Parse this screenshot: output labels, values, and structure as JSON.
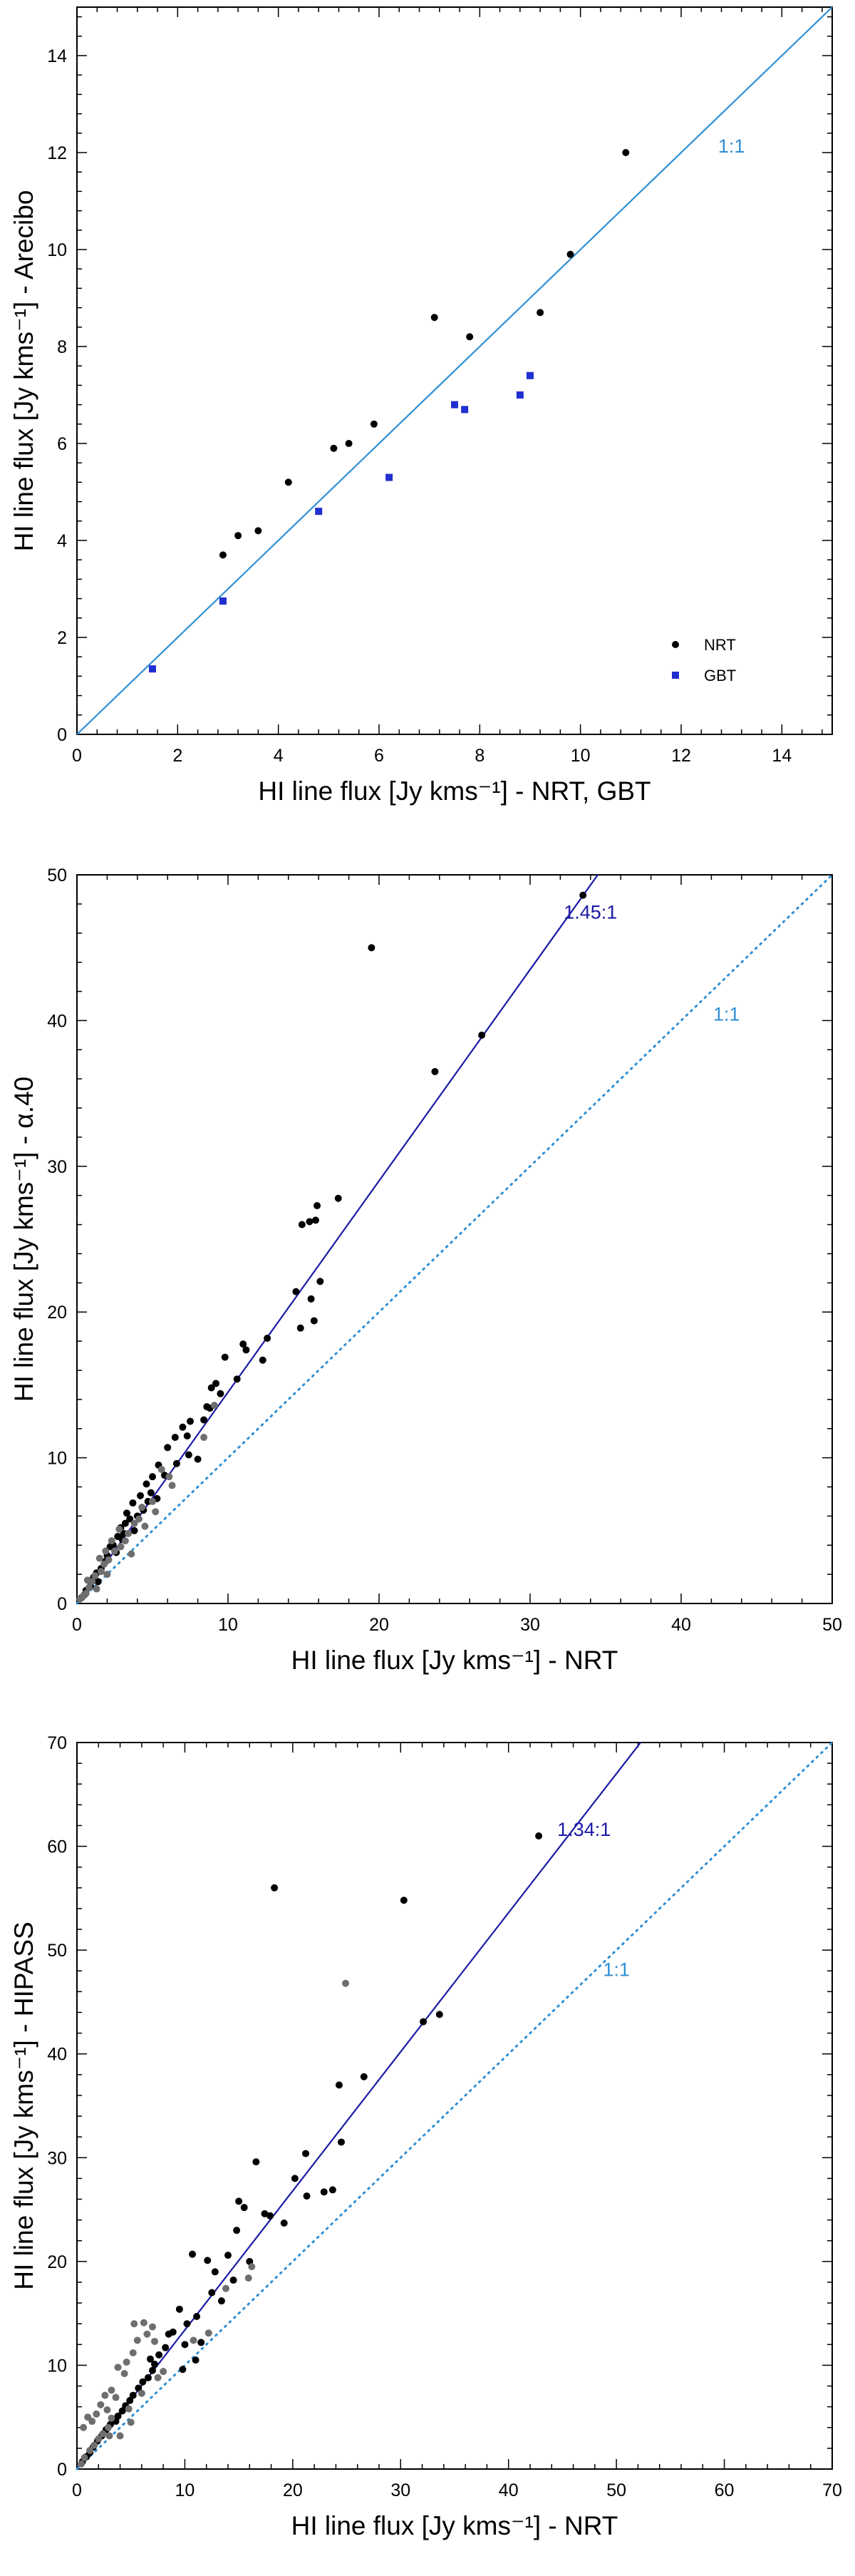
{
  "chart_data": [
    {
      "type": "scatter",
      "title": "",
      "xlabel": "HI line flux [Jy kms⁻¹] - NRT, GBT",
      "ylabel": "HI line flux [Jy kms⁻¹] - Arecibo",
      "xlim": [
        0,
        15
      ],
      "ylim": [
        0,
        15
      ],
      "xticks": [
        0,
        2,
        4,
        6,
        8,
        10,
        12,
        14
      ],
      "yticks": [
        0,
        2,
        4,
        6,
        8,
        10,
        12,
        14
      ],
      "legend_position": "bottom-right",
      "lines": [
        {
          "name": "1:1",
          "slope": 1.0,
          "style": "solid",
          "color": "#2e8fd6",
          "label_x": 13.0,
          "label_y": 12.0
        }
      ],
      "series": [
        {
          "name": "NRT",
          "marker": "circle",
          "color": "#000000",
          "points": [
            [
              2.9,
              3.7
            ],
            [
              3.2,
              4.1
            ],
            [
              3.6,
              4.2
            ],
            [
              4.2,
              5.2
            ],
            [
              5.1,
              5.9
            ],
            [
              5.4,
              6.0
            ],
            [
              5.9,
              6.4
            ],
            [
              7.1,
              8.6
            ],
            [
              7.8,
              8.2
            ],
            [
              9.2,
              8.7
            ],
            [
              9.8,
              9.9
            ],
            [
              10.9,
              12.0
            ]
          ]
        },
        {
          "name": "GBT",
          "marker": "square",
          "color": "#1f2fd0",
          "points": [
            [
              1.5,
              1.35
            ],
            [
              2.9,
              2.75
            ],
            [
              4.8,
              4.6
            ],
            [
              6.2,
              5.3
            ],
            [
              7.5,
              6.8
            ],
            [
              7.7,
              6.7
            ],
            [
              8.8,
              7.0
            ],
            [
              9.0,
              7.4
            ]
          ]
        }
      ]
    },
    {
      "type": "scatter",
      "title": "",
      "xlabel": "HI line flux [Jy kms⁻¹] - NRT",
      "ylabel": "HI line flux [Jy kms⁻¹] - α.40",
      "xlim": [
        0,
        50
      ],
      "ylim": [
        0,
        50
      ],
      "xticks": [
        0,
        10,
        20,
        30,
        40,
        50
      ],
      "yticks": [
        0,
        10,
        20,
        30,
        40,
        50
      ],
      "lines": [
        {
          "name": "1.45:1",
          "slope": 1.45,
          "style": "solid",
          "color": "#1a1aa6",
          "label_x": 34.0,
          "label_y": 47.0
        },
        {
          "name": "1:1",
          "slope": 1.0,
          "style": "dotted",
          "color": "#2e8fd6",
          "label_x": 43.0,
          "label_y": 40.0
        }
      ],
      "series": [
        {
          "name": "black",
          "color": "#000000",
          "points": [
            [
              33.5,
              48.6
            ],
            [
              19.5,
              45.0
            ],
            [
              26.8,
              39.0
            ],
            [
              23.7,
              36.5
            ],
            [
              17.3,
              27.8
            ],
            [
              15.9,
              27.3
            ],
            [
              15.8,
              26.3
            ],
            [
              15.4,
              26.2
            ],
            [
              14.9,
              26.0
            ],
            [
              14.5,
              21.4
            ],
            [
              16.1,
              22.1
            ],
            [
              15.5,
              20.9
            ],
            [
              15.7,
              19.4
            ],
            [
              14.8,
              18.9
            ],
            [
              12.6,
              18.2
            ],
            [
              11.0,
              17.8
            ],
            [
              11.2,
              17.4
            ],
            [
              9.8,
              16.9
            ],
            [
              12.3,
              16.7
            ],
            [
              10.6,
              15.4
            ],
            [
              9.2,
              15.1
            ],
            [
              8.9,
              14.8
            ],
            [
              8.6,
              13.5
            ],
            [
              8.4,
              12.6
            ],
            [
              7.5,
              12.5
            ],
            [
              7.0,
              12.1
            ],
            [
              7.3,
              11.5
            ],
            [
              6.5,
              11.4
            ],
            [
              6.0,
              10.7
            ],
            [
              7.4,
              10.2
            ],
            [
              8.0,
              9.9
            ],
            [
              5.4,
              9.5
            ],
            [
              5.0,
              8.7
            ],
            [
              4.6,
              8.2
            ],
            [
              4.9,
              7.6
            ],
            [
              5.3,
              7.2
            ],
            [
              4.2,
              7.4
            ],
            [
              3.7,
              6.9
            ],
            [
              4.4,
              6.4
            ],
            [
              3.3,
              6.2
            ],
            [
              3.5,
              5.8
            ],
            [
              2.9,
              5.2
            ],
            [
              3.2,
              5.5
            ],
            [
              3.8,
              5.0
            ],
            [
              2.7,
              4.6
            ],
            [
              3.0,
              4.4
            ],
            [
              2.4,
              4.0
            ],
            [
              2.6,
              3.5
            ],
            [
              2.0,
              3.3
            ],
            [
              1.9,
              2.9
            ],
            [
              1.6,
              2.4
            ],
            [
              1.3,
              2.1
            ],
            [
              1.1,
              1.8
            ],
            [
              1.4,
              1.5
            ],
            [
              0.9,
              1.2
            ],
            [
              0.6,
              0.9
            ],
            [
              0.5,
              0.6
            ],
            [
              0.3,
              0.4
            ],
            [
              5.8,
              8.8
            ],
            [
              6.6,
              9.6
            ],
            [
              9.5,
              14.4
            ],
            [
              8.8,
              13.4
            ],
            [
              2.2,
              3.9
            ],
            [
              4.0,
              6.0
            ],
            [
              3.1,
              4.8
            ],
            [
              4.7,
              7.0
            ]
          ]
        },
        {
          "name": "grey",
          "color": "#6e6e6e",
          "points": [
            [
              9.1,
              13.6
            ],
            [
              8.4,
              11.4
            ],
            [
              6.1,
              8.7
            ],
            [
              5.6,
              9.2
            ],
            [
              5.0,
              7.0
            ],
            [
              4.3,
              6.6
            ],
            [
              3.8,
              5.5
            ],
            [
              3.2,
              4.3
            ],
            [
              2.9,
              3.9
            ],
            [
              2.5,
              3.6
            ],
            [
              2.1,
              3.0
            ],
            [
              1.8,
              2.7
            ],
            [
              1.6,
              2.2
            ],
            [
              1.2,
              1.9
            ],
            [
              1.0,
              1.5
            ],
            [
              0.8,
              1.1
            ],
            [
              0.6,
              0.7
            ],
            [
              0.4,
              0.5
            ],
            [
              0.2,
              0.3
            ],
            [
              1.9,
              3.6
            ],
            [
              2.3,
              4.3
            ],
            [
              2.8,
              5.1
            ],
            [
              3.4,
              4.8
            ],
            [
              4.1,
              5.8
            ],
            [
              0.7,
              1.6
            ],
            [
              1.3,
              1.0
            ],
            [
              2.0,
              2.0
            ],
            [
              1.5,
              3.1
            ],
            [
              3.6,
              3.4
            ],
            [
              4.5,
              5.3
            ],
            [
              5.2,
              6.3
            ],
            [
              6.3,
              8.1
            ]
          ]
        }
      ]
    },
    {
      "type": "scatter",
      "title": "",
      "xlabel": "HI line flux [Jy kms⁻¹] - NRT",
      "ylabel": "HI line flux [Jy kms⁻¹] - HIPASS",
      "xlim": [
        0,
        70
      ],
      "ylim": [
        0,
        70
      ],
      "xticks": [
        0,
        10,
        20,
        30,
        40,
        50,
        60,
        70
      ],
      "yticks": [
        0,
        10,
        20,
        30,
        40,
        50,
        60,
        70
      ],
      "lines": [
        {
          "name": "1.34:1",
          "slope": 1.34,
          "style": "solid",
          "color": "#1a1aa6",
          "label_x": 47.0,
          "label_y": 61.0
        },
        {
          "name": "1:1",
          "slope": 1.0,
          "style": "dotted",
          "color": "#2e8fd6",
          "label_x": 50.0,
          "label_y": 47.5
        }
      ],
      "series": [
        {
          "name": "black",
          "color": "#000000",
          "points": [
            [
              42.8,
              61.0
            ],
            [
              18.3,
              56.0
            ],
            [
              30.3,
              54.8
            ],
            [
              33.6,
              43.8
            ],
            [
              32.1,
              43.1
            ],
            [
              26.6,
              37.8
            ],
            [
              24.3,
              37.0
            ],
            [
              24.5,
              31.5
            ],
            [
              21.2,
              30.4
            ],
            [
              22.9,
              26.7
            ],
            [
              23.7,
              26.9
            ],
            [
              21.3,
              26.3
            ],
            [
              16.6,
              29.6
            ],
            [
              15.0,
              25.8
            ],
            [
              15.5,
              25.2
            ],
            [
              17.4,
              24.6
            ],
            [
              17.9,
              24.4
            ],
            [
              19.2,
              23.7
            ],
            [
              20.2,
              28.0
            ],
            [
              14.8,
              23.0
            ],
            [
              14.0,
              20.6
            ],
            [
              12.1,
              20.1
            ],
            [
              10.7,
              20.7
            ],
            [
              12.5,
              17.0
            ],
            [
              13.4,
              16.2
            ],
            [
              14.5,
              18.2
            ],
            [
              11.1,
              14.7
            ],
            [
              10.2,
              14.0
            ],
            [
              9.5,
              15.4
            ],
            [
              8.9,
              13.2
            ],
            [
              8.2,
              11.7
            ],
            [
              7.6,
              11.0
            ],
            [
              7.2,
              10.1
            ],
            [
              7.0,
              9.5
            ],
            [
              6.6,
              8.8
            ],
            [
              6.1,
              8.4
            ],
            [
              5.7,
              7.8
            ],
            [
              5.2,
              7.1
            ],
            [
              4.9,
              6.6
            ],
            [
              4.5,
              6.1
            ],
            [
              4.2,
              5.6
            ],
            [
              3.8,
              5.1
            ],
            [
              3.6,
              4.6
            ],
            [
              3.1,
              4.3
            ],
            [
              2.7,
              3.8
            ],
            [
              2.3,
              3.2
            ],
            [
              1.9,
              2.7
            ],
            [
              1.5,
              2.1
            ],
            [
              1.2,
              1.6
            ],
            [
              0.9,
              1.2
            ],
            [
              0.5,
              0.7
            ],
            [
              10.0,
              12.0
            ],
            [
              11.5,
              12.2
            ],
            [
              12.8,
              19.0
            ],
            [
              16.0,
              20.0
            ],
            [
              8.5,
              13.0
            ],
            [
              6.8,
              10.6
            ],
            [
              9.8,
              9.6
            ],
            [
              11.0,
              10.5
            ]
          ]
        },
        {
          "name": "grey",
          "color": "#6e6e6e",
          "points": [
            [
              24.9,
              46.8
            ],
            [
              16.2,
              19.5
            ],
            [
              13.8,
              17.4
            ],
            [
              15.9,
              18.4
            ],
            [
              12.2,
              13.1
            ],
            [
              10.8,
              12.4
            ],
            [
              5.3,
              14.0
            ],
            [
              6.2,
              14.1
            ],
            [
              7.0,
              13.7
            ],
            [
              6.5,
              13.0
            ],
            [
              5.6,
              12.4
            ],
            [
              7.2,
              12.3
            ],
            [
              4.6,
              10.3
            ],
            [
              5.2,
              11.2
            ],
            [
              3.8,
              9.8
            ],
            [
              4.4,
              9.2
            ],
            [
              3.2,
              7.6
            ],
            [
              2.6,
              7.1
            ],
            [
              2.2,
              6.2
            ],
            [
              3.6,
              6.9
            ],
            [
              1.8,
              5.3
            ],
            [
              1.4,
              4.6
            ],
            [
              3.2,
              4.9
            ],
            [
              2.9,
              4.0
            ],
            [
              2.4,
              3.4
            ],
            [
              2.0,
              2.9
            ],
            [
              1.6,
              2.3
            ],
            [
              1.2,
              1.8
            ],
            [
              0.7,
              1.1
            ],
            [
              0.4,
              0.5
            ],
            [
              0.6,
              4.0
            ],
            [
              1.0,
              5.0
            ],
            [
              4.0,
              3.2
            ],
            [
              5.0,
              4.5
            ],
            [
              6.0,
              7.3
            ],
            [
              7.5,
              8.8
            ],
            [
              8.0,
              9.4
            ],
            [
              3.0,
              3.2
            ],
            [
              4.8,
              5.8
            ],
            [
              2.8,
              5.7
            ]
          ]
        }
      ]
    }
  ]
}
